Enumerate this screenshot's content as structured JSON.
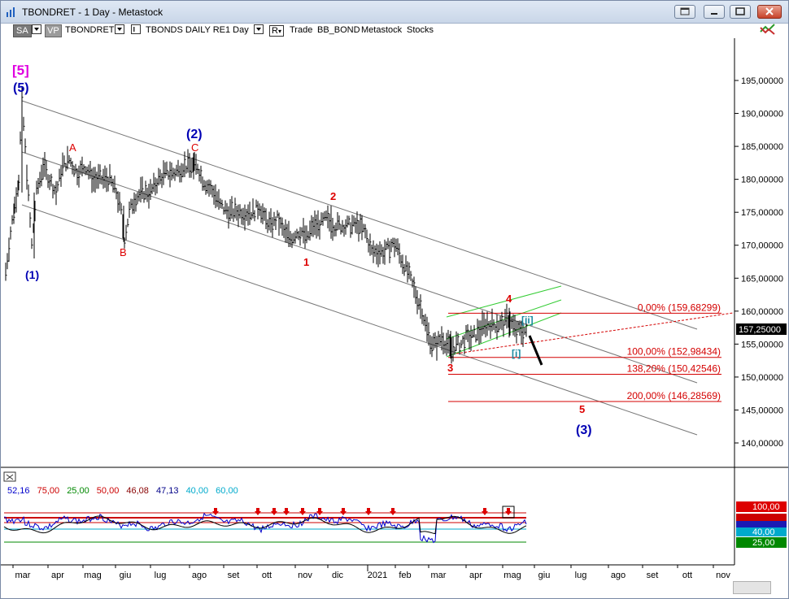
{
  "window": {
    "title": "TBONDRET - 1 Day - Metastock"
  },
  "toolbar": {
    "sa": "SA",
    "vp": "VP",
    "symbol": "TBONDRET",
    "name": "TBONDS DAILY RE",
    "period": "1 Day",
    "r_label": "R",
    "trade": "Trade",
    "bb_bond": "BB_BOND",
    "metastock": "Metastock",
    "stocks": "Stocks"
  },
  "chart_data": {
    "type": "line",
    "title": "",
    "y_axis_labels": [
      "195,00000",
      "190,00000",
      "185,00000",
      "180,00000",
      "175,00000",
      "170,00000",
      "165,00000",
      "160,00000",
      "155,00000",
      "150,00000",
      "145,00000",
      "140,00000"
    ],
    "y_values": [
      195,
      190,
      185,
      180,
      175,
      170,
      165,
      160,
      155,
      150,
      145,
      140
    ],
    "ylim": [
      136.7,
      201.5
    ],
    "last_price": "157,25000",
    "x_axis_labels": [
      "mar",
      "apr",
      "mag",
      "giu",
      "lug",
      "ago",
      "set",
      "ott",
      "nov",
      "dic",
      "2021",
      "feb",
      "mar",
      "apr",
      "mag",
      "giu",
      "lug",
      "ago",
      "set",
      "ott",
      "nov"
    ],
    "wave_labels": {
      "w5_box": "[5]",
      "w5": "(5)",
      "w1": "(1)",
      "A": "A",
      "B": "B",
      "w2": "(2)",
      "C": "C",
      "r1": "1",
      "r2": "2",
      "r3": "3",
      "r4": "4",
      "ii": "[ii]",
      "i": "[i]",
      "r5": "5",
      "w3": "(3)"
    },
    "fib_levels": [
      {
        "label": "0,00% (159,68299)",
        "value": 159.68299
      },
      {
        "label": "100,00% (152,98434)",
        "value": 152.98434
      },
      {
        "label": "138,20% (150,42546)",
        "value": 150.42546
      },
      {
        "label": "200,00% (146,28569)",
        "value": 146.28569
      }
    ],
    "colors": {
      "wave_blue": "#0000b4",
      "wave_red": "#dd0000",
      "wave_magenta": "#e000e0",
      "fib_red": "#d40000",
      "channel_green": "#33cc33",
      "channel_grey": "#777777",
      "wave_teal": "#1a8aa0"
    }
  },
  "indicator": {
    "values": [
      {
        "text": "52,16",
        "color": "#0000cc"
      },
      {
        "text": "75,00",
        "color": "#cc0000"
      },
      {
        "text": "25,00",
        "color": "#008800"
      },
      {
        "text": "50,00",
        "color": "#cc0000"
      },
      {
        "text": "46,08",
        "color": "#880000"
      },
      {
        "text": "47,13",
        "color": "#000088"
      },
      {
        "text": "40,00",
        "color": "#00aacc"
      },
      {
        "text": "60,00",
        "color": "#00aacc"
      }
    ],
    "axis_labels": [
      {
        "text": "100,00"
      },
      {
        "text": "40,00"
      },
      {
        "text": "25,00"
      }
    ]
  }
}
